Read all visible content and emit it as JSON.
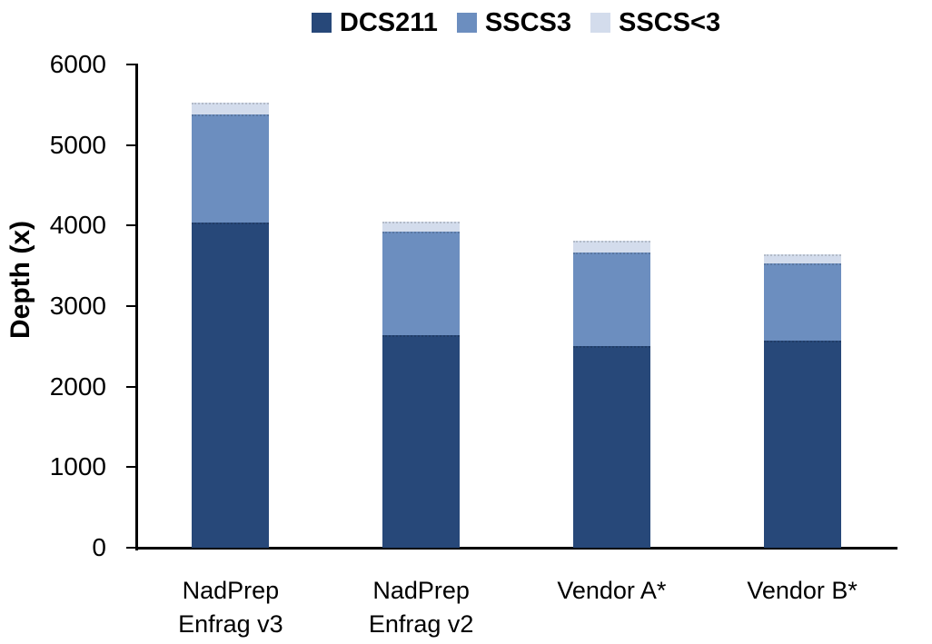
{
  "chart_data": {
    "type": "bar",
    "stacked": true,
    "title": "",
    "ylabel": "Depth (x)",
    "xlabel": "",
    "ylim": [
      0,
      6000
    ],
    "yticks": [
      0,
      1000,
      2000,
      3000,
      4000,
      5000,
      6000
    ],
    "grid": false,
    "legend_position": "top",
    "categories": [
      "NadPrep\nEnfrag v3",
      "NadPrep\nEnfrag v2",
      "Vendor A*",
      "Vendor B*"
    ],
    "series": [
      {
        "name": "DCS211",
        "color": "#274879",
        "values": [
          4040,
          2640,
          2500,
          2570
        ]
      },
      {
        "name": "SSCS3",
        "color": "#6c8ebf",
        "values": [
          1340,
          1290,
          1170,
          960
        ]
      },
      {
        "name": "SSCS<3",
        "color": "#d3dcec",
        "values": [
          150,
          120,
          140,
          110
        ]
      }
    ]
  },
  "colors": {
    "axis": "#000000",
    "text": "#000000",
    "background": "#ffffff"
  }
}
